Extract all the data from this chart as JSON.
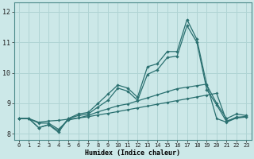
{
  "xlabel": "Humidex (Indice chaleur)",
  "ylabel": "",
  "background_color": "#cce8e8",
  "grid_color": "#b0d4d4",
  "line_color": "#2a7070",
  "xlim": [
    -0.5,
    23.5
  ],
  "ylim": [
    7.8,
    12.3
  ],
  "x_ticks": [
    0,
    1,
    2,
    3,
    4,
    5,
    6,
    7,
    8,
    9,
    10,
    11,
    12,
    13,
    14,
    15,
    16,
    17,
    18,
    19,
    20,
    21,
    22,
    23
  ],
  "y_ticks": [
    8,
    9,
    10,
    11,
    12
  ],
  "x_data": [
    0,
    1,
    2,
    3,
    4,
    5,
    6,
    7,
    8,
    9,
    10,
    11,
    12,
    13,
    14,
    15,
    16,
    17,
    18,
    19,
    20,
    21,
    22,
    23
  ],
  "line1": [
    8.5,
    8.5,
    8.2,
    8.3,
    8.1,
    8.5,
    8.65,
    8.7,
    9.0,
    9.3,
    9.6,
    9.5,
    9.2,
    10.2,
    10.3,
    10.7,
    10.7,
    11.75,
    11.1,
    9.6,
    9.0,
    8.5,
    8.65,
    8.6
  ],
  "line2": [
    8.5,
    8.5,
    8.2,
    8.3,
    8.05,
    8.5,
    8.6,
    8.65,
    8.88,
    9.1,
    9.5,
    9.4,
    9.1,
    9.95,
    10.1,
    10.5,
    10.55,
    11.55,
    11.0,
    9.45,
    8.95,
    8.4,
    8.55,
    8.55
  ],
  "line3": [
    8.5,
    8.5,
    8.35,
    8.35,
    8.15,
    8.45,
    8.52,
    8.6,
    8.72,
    8.82,
    8.92,
    8.98,
    9.08,
    9.18,
    9.28,
    9.38,
    9.48,
    9.53,
    9.58,
    9.63,
    8.5,
    8.38,
    8.52,
    8.58
  ],
  "line4": [
    8.5,
    8.5,
    8.38,
    8.42,
    8.44,
    8.48,
    8.52,
    8.56,
    8.62,
    8.67,
    8.73,
    8.79,
    8.85,
    8.91,
    8.97,
    9.03,
    9.09,
    9.15,
    9.21,
    9.27,
    9.33,
    8.42,
    8.52,
    8.55
  ]
}
